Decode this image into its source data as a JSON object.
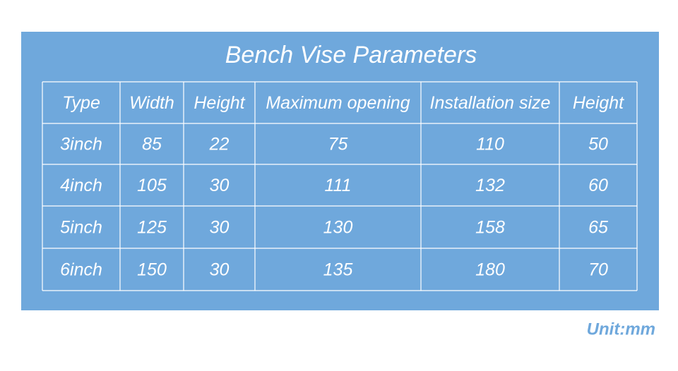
{
  "title": "Bench Vise Parameters",
  "table": {
    "header": [
      "Type",
      "Width",
      "Height",
      "Maximum opening",
      "Installation size",
      "Height"
    ],
    "rows": [
      [
        "3inch",
        85,
        22,
        75,
        110,
        50
      ],
      [
        "4inch",
        105,
        30,
        111,
        132,
        60
      ],
      [
        "5inch",
        125,
        30,
        130,
        158,
        65
      ],
      [
        "6inch",
        150,
        30,
        135,
        180,
        70
      ]
    ]
  },
  "unit": "Unit:mm"
}
